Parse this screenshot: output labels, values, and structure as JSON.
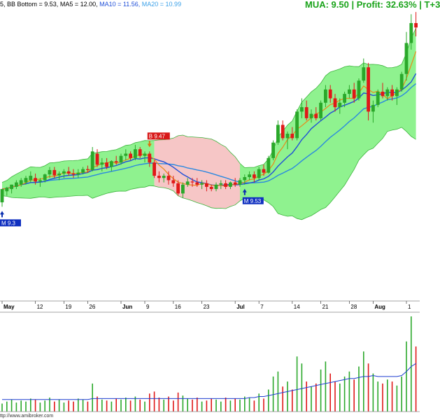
{
  "header": {
    "bb_bottom": "5, BB Bottom = 9.53,",
    "ma5": "MA5 = 12.00,",
    "ma10": "MA10 = 11.56,",
    "ma20": "MA20 = 10.99",
    "status": "MUA: 9.50 | Profit: 32.63% | T+3",
    "colors": {
      "bb": "#000000",
      "ma5": "#000000",
      "ma10": "#1f4fd8",
      "ma20": "#3aa0e8",
      "status": "#1aa31a"
    }
  },
  "footer": {
    "text": "ttp://www.amibroker.com"
  },
  "chart_data": {
    "type": "candlestick",
    "x_axis_labels": [
      "May",
      "12",
      "19",
      "26",
      "Jun",
      "9",
      "16",
      "23",
      "Jul",
      "7",
      "14",
      "21",
      "28",
      "Aug",
      "1"
    ],
    "bold_labels": [
      "May",
      "Jun",
      "Jul",
      "Aug"
    ],
    "signals": [
      {
        "type": "buy",
        "label": "M 9.3",
        "bar": 0
      },
      {
        "type": "sell",
        "label": "B 9.47",
        "bar": 31
      },
      {
        "type": "buy",
        "label": "M 9.53",
        "bar": 51
      }
    ],
    "ylim": [
      7.0,
      13.5
    ],
    "candles": [
      [
        9.15,
        9.45,
        9.05,
        9.45
      ],
      [
        9.4,
        9.5,
        9.3,
        9.48
      ],
      [
        9.45,
        9.55,
        9.35,
        9.55
      ],
      [
        9.5,
        9.65,
        9.45,
        9.6
      ],
      [
        9.55,
        9.7,
        9.5,
        9.65
      ],
      [
        9.6,
        9.75,
        9.55,
        9.7
      ],
      [
        9.65,
        9.85,
        9.6,
        9.75
      ],
      [
        9.7,
        9.8,
        9.55,
        9.62
      ],
      [
        9.62,
        9.7,
        9.5,
        9.65
      ],
      [
        9.65,
        9.8,
        9.6,
        9.78
      ],
      [
        9.78,
        9.95,
        9.7,
        9.88
      ],
      [
        9.88,
        9.95,
        9.7,
        9.76
      ],
      [
        9.76,
        9.85,
        9.65,
        9.8
      ],
      [
        9.8,
        9.9,
        9.7,
        9.85
      ],
      [
        9.85,
        9.95,
        9.75,
        9.8
      ],
      [
        9.8,
        9.9,
        9.7,
        9.78
      ],
      [
        9.78,
        9.9,
        9.7,
        9.82
      ],
      [
        9.82,
        9.95,
        9.78,
        9.9
      ],
      [
        9.9,
        9.98,
        9.82,
        9.88
      ],
      [
        9.88,
        10.4,
        9.85,
        10.3
      ],
      [
        10.25,
        10.35,
        9.95,
        10.0
      ],
      [
        10.0,
        10.15,
        9.85,
        10.05
      ],
      [
        10.05,
        10.15,
        9.9,
        9.95
      ],
      [
        9.95,
        10.1,
        9.85,
        10.08
      ],
      [
        10.08,
        10.2,
        10.0,
        10.05
      ],
      [
        10.05,
        10.25,
        10.0,
        10.2
      ],
      [
        10.2,
        10.35,
        10.1,
        10.25
      ],
      [
        10.25,
        10.3,
        10.1,
        10.15
      ],
      [
        10.15,
        10.45,
        10.1,
        10.35
      ],
      [
        10.35,
        10.4,
        10.15,
        10.2
      ],
      [
        10.2,
        10.3,
        10.05,
        10.25
      ],
      [
        10.25,
        10.3,
        9.95,
        10.05
      ],
      [
        10.05,
        10.1,
        9.7,
        9.75
      ],
      [
        9.75,
        9.85,
        9.6,
        9.7
      ],
      [
        9.7,
        9.8,
        9.6,
        9.75
      ],
      [
        9.75,
        9.85,
        9.55,
        9.65
      ],
      [
        9.65,
        9.75,
        9.5,
        9.58
      ],
      [
        9.58,
        9.65,
        9.3,
        9.35
      ],
      [
        9.35,
        9.6,
        9.25,
        9.55
      ],
      [
        9.55,
        9.7,
        9.5,
        9.62
      ],
      [
        9.62,
        9.7,
        9.5,
        9.6
      ],
      [
        9.6,
        9.7,
        9.5,
        9.55
      ],
      [
        9.55,
        9.65,
        9.45,
        9.58
      ],
      [
        9.58,
        9.65,
        9.4,
        9.5
      ],
      [
        9.5,
        9.55,
        9.4,
        9.45
      ],
      [
        9.45,
        9.6,
        9.4,
        9.55
      ],
      [
        9.55,
        9.65,
        9.45,
        9.58
      ],
      [
        9.58,
        9.65,
        9.45,
        9.5
      ],
      [
        9.5,
        9.62,
        9.45,
        9.6
      ],
      [
        9.6,
        9.7,
        9.5,
        9.55
      ],
      [
        9.55,
        9.7,
        9.5,
        9.65
      ],
      [
        9.65,
        9.78,
        9.55,
        9.72
      ],
      [
        9.72,
        9.85,
        9.65,
        9.78
      ],
      [
        9.78,
        9.85,
        9.6,
        9.7
      ],
      [
        9.7,
        9.95,
        9.65,
        9.9
      ],
      [
        9.9,
        10.0,
        9.75,
        9.82
      ],
      [
        9.82,
        10.2,
        9.8,
        10.15
      ],
      [
        10.15,
        10.55,
        10.1,
        10.5
      ],
      [
        10.5,
        11.0,
        10.45,
        10.9
      ],
      [
        10.9,
        11.0,
        10.55,
        10.6
      ],
      [
        10.6,
        10.75,
        10.35,
        10.7
      ],
      [
        10.7,
        10.85,
        10.55,
        10.6
      ],
      [
        10.6,
        11.25,
        10.55,
        11.2
      ],
      [
        11.2,
        11.5,
        11.05,
        11.3
      ],
      [
        11.3,
        11.45,
        11.0,
        11.05
      ],
      [
        11.05,
        11.25,
        10.95,
        11.15
      ],
      [
        11.15,
        11.3,
        11.0,
        11.05
      ],
      [
        11.05,
        11.45,
        11.0,
        11.4
      ],
      [
        11.4,
        11.8,
        11.3,
        11.7
      ],
      [
        11.7,
        11.8,
        11.4,
        11.5
      ],
      [
        11.5,
        11.6,
        11.2,
        11.3
      ],
      [
        11.3,
        11.5,
        11.15,
        11.4
      ],
      [
        11.4,
        11.65,
        11.3,
        11.6
      ],
      [
        11.6,
        11.8,
        11.5,
        11.7
      ],
      [
        11.7,
        11.85,
        11.4,
        11.5
      ],
      [
        11.5,
        11.95,
        11.45,
        11.9
      ],
      [
        11.9,
        12.4,
        11.85,
        12.2
      ],
      [
        12.2,
        12.3,
        11.0,
        11.2
      ],
      [
        11.2,
        11.45,
        10.95,
        11.35
      ],
      [
        11.35,
        11.7,
        11.3,
        11.65
      ],
      [
        11.65,
        11.85,
        11.5,
        11.55
      ],
      [
        11.55,
        11.75,
        11.45,
        11.7
      ],
      [
        11.7,
        11.8,
        11.45,
        11.55
      ],
      [
        11.55,
        11.75,
        11.35,
        11.7
      ],
      [
        11.7,
        12.1,
        11.65,
        12.05
      ],
      [
        12.05,
        13.0,
        11.9,
        12.75
      ],
      [
        12.75,
        13.4,
        12.6,
        13.2
      ],
      [
        13.2,
        13.45,
        12.9,
        13.1
      ]
    ],
    "volumes": [
      8,
      10,
      12,
      9,
      11,
      10,
      13,
      12,
      9,
      11,
      14,
      10,
      12,
      9,
      11,
      10,
      13,
      12,
      10,
      28,
      15,
      12,
      11,
      10,
      13,
      12,
      14,
      11,
      15,
      12,
      10,
      18,
      20,
      14,
      12,
      15,
      11,
      19,
      16,
      13,
      12,
      14,
      10,
      11,
      13,
      12,
      10,
      14,
      11,
      13,
      12,
      15,
      14,
      11,
      18,
      13,
      22,
      35,
      40,
      25,
      30,
      22,
      55,
      48,
      30,
      25,
      28,
      42,
      50,
      38,
      30,
      28,
      35,
      40,
      32,
      45,
      60,
      48,
      38,
      30,
      28,
      32,
      30,
      26,
      35,
      70,
      95,
      65
    ],
    "volume_ma": [
      12,
      12,
      12,
      12,
      12,
      12,
      12,
      12,
      12,
      12,
      12,
      12,
      12,
      12,
      12,
      12,
      12,
      12,
      12,
      13,
      13,
      13,
      13,
      13,
      13,
      13,
      13,
      13,
      13,
      13,
      13,
      13,
      13,
      13,
      13,
      13,
      13,
      13,
      13,
      13,
      13,
      13,
      13,
      13,
      13,
      13,
      13,
      13,
      13,
      13,
      13,
      13,
      14,
      14,
      15,
      15,
      16,
      17,
      18,
      19,
      20,
      21,
      22,
      23,
      24,
      25,
      26,
      27,
      28,
      29,
      30,
      31,
      32,
      33,
      33,
      34,
      35,
      35,
      36,
      35,
      35,
      35,
      35,
      35,
      36,
      40,
      45,
      48
    ]
  }
}
